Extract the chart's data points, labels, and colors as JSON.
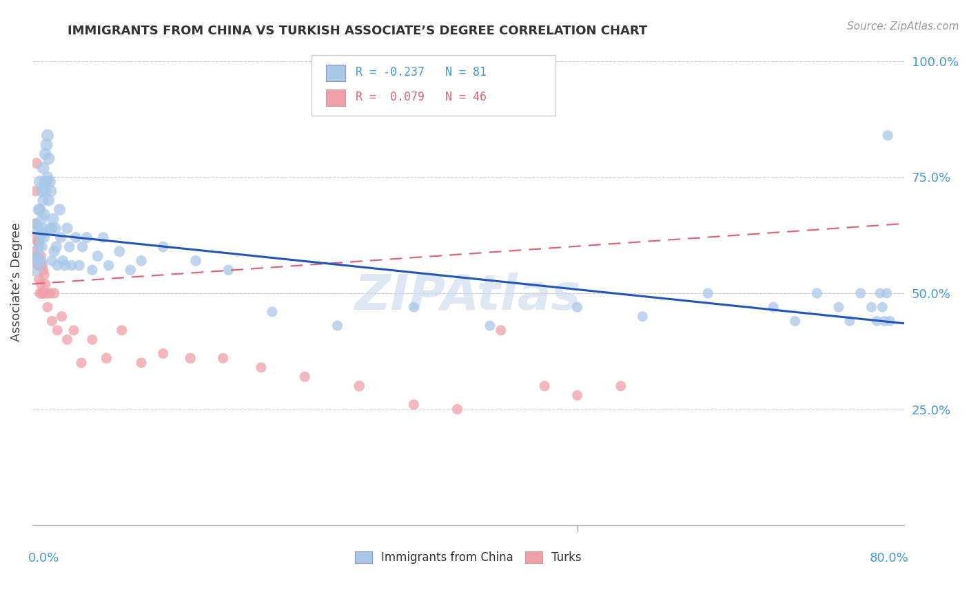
{
  "title": "IMMIGRANTS FROM CHINA VS TURKISH ASSOCIATE’S DEGREE CORRELATION CHART",
  "source": "Source: ZipAtlas.com",
  "ylabel": "Associate’s Degree",
  "right_yticks": [
    "100.0%",
    "75.0%",
    "50.0%",
    "25.0%"
  ],
  "right_ytick_vals": [
    1.0,
    0.75,
    0.5,
    0.25
  ],
  "legend_blue_r": "-0.237",
  "legend_blue_n": "81",
  "legend_pink_r": "0.079",
  "legend_pink_n": "46",
  "blue_color": "#A8C8E8",
  "pink_color": "#F0A0A8",
  "trend_blue_color": "#2255BB",
  "trend_pink_color": "#DD6677",
  "watermark_color": "#C8D8EE",
  "blue_trend_x": [
    0.0,
    0.8
  ],
  "blue_trend_y": [
    0.63,
    0.435
  ],
  "pink_trend_x": [
    0.0,
    0.8
  ],
  "pink_trend_y": [
    0.52,
    0.65
  ],
  "xlim": [
    0.0,
    0.8
  ],
  "ylim": [
    0.0,
    1.05
  ],
  "ygrid_vals": [
    0.25,
    0.5,
    0.75,
    1.0
  ],
  "china_x": [
    0.001,
    0.003,
    0.004,
    0.005,
    0.005,
    0.006,
    0.006,
    0.007,
    0.007,
    0.007,
    0.008,
    0.008,
    0.009,
    0.009,
    0.009,
    0.01,
    0.01,
    0.01,
    0.011,
    0.011,
    0.011,
    0.012,
    0.012,
    0.013,
    0.013,
    0.014,
    0.014,
    0.015,
    0.015,
    0.016,
    0.016,
    0.017,
    0.018,
    0.018,
    0.019,
    0.02,
    0.021,
    0.022,
    0.023,
    0.025,
    0.026,
    0.028,
    0.03,
    0.032,
    0.034,
    0.036,
    0.04,
    0.043,
    0.046,
    0.05,
    0.055,
    0.06,
    0.065,
    0.07,
    0.08,
    0.09,
    0.1,
    0.12,
    0.15,
    0.18,
    0.22,
    0.28,
    0.35,
    0.42,
    0.5,
    0.56,
    0.62,
    0.68,
    0.7,
    0.72,
    0.74,
    0.75,
    0.76,
    0.77,
    0.775,
    0.778,
    0.78,
    0.782,
    0.784,
    0.785,
    0.787
  ],
  "china_y": [
    0.56,
    0.65,
    0.57,
    0.64,
    0.58,
    0.68,
    0.6,
    0.74,
    0.68,
    0.62,
    0.64,
    0.57,
    0.72,
    0.66,
    0.6,
    0.77,
    0.7,
    0.63,
    0.74,
    0.67,
    0.62,
    0.8,
    0.72,
    0.82,
    0.74,
    0.84,
    0.75,
    0.79,
    0.7,
    0.74,
    0.64,
    0.72,
    0.64,
    0.57,
    0.66,
    0.59,
    0.64,
    0.6,
    0.56,
    0.68,
    0.62,
    0.57,
    0.56,
    0.64,
    0.6,
    0.56,
    0.62,
    0.56,
    0.6,
    0.62,
    0.55,
    0.58,
    0.62,
    0.56,
    0.59,
    0.55,
    0.57,
    0.6,
    0.57,
    0.55,
    0.46,
    0.43,
    0.47,
    0.43,
    0.47,
    0.45,
    0.5,
    0.47,
    0.44,
    0.5,
    0.47,
    0.44,
    0.5,
    0.47,
    0.44,
    0.5,
    0.47,
    0.44,
    0.5,
    0.84,
    0.44
  ],
  "china_sizes": [
    500,
    120,
    120,
    150,
    120,
    160,
    130,
    170,
    150,
    130,
    160,
    150,
    160,
    140,
    125,
    165,
    145,
    130,
    160,
    145,
    130,
    165,
    145,
    170,
    148,
    170,
    148,
    162,
    145,
    158,
    138,
    155,
    142,
    130,
    148,
    138,
    148,
    138,
    125,
    148,
    135,
    128,
    135,
    140,
    130,
    125,
    135,
    128,
    128,
    138,
    125,
    130,
    128,
    125,
    130,
    125,
    128,
    130,
    128,
    125,
    120,
    118,
    120,
    118,
    120,
    118,
    120,
    118,
    118,
    120,
    118,
    116,
    118,
    116,
    116,
    118,
    116,
    116,
    118,
    120,
    116
  ],
  "turk_x": [
    0.001,
    0.002,
    0.003,
    0.003,
    0.004,
    0.004,
    0.005,
    0.005,
    0.006,
    0.006,
    0.007,
    0.007,
    0.008,
    0.008,
    0.009,
    0.009,
    0.01,
    0.01,
    0.011,
    0.012,
    0.013,
    0.014,
    0.016,
    0.018,
    0.02,
    0.023,
    0.027,
    0.032,
    0.038,
    0.045,
    0.055,
    0.068,
    0.082,
    0.1,
    0.12,
    0.145,
    0.175,
    0.21,
    0.25,
    0.3,
    0.35,
    0.39,
    0.43,
    0.47,
    0.5,
    0.54
  ],
  "turk_y": [
    0.62,
    0.59,
    0.72,
    0.65,
    0.78,
    0.58,
    0.56,
    0.61,
    0.61,
    0.53,
    0.56,
    0.5,
    0.58,
    0.52,
    0.56,
    0.5,
    0.55,
    0.5,
    0.54,
    0.52,
    0.5,
    0.47,
    0.5,
    0.44,
    0.5,
    0.42,
    0.45,
    0.4,
    0.42,
    0.35,
    0.4,
    0.36,
    0.42,
    0.35,
    0.37,
    0.36,
    0.36,
    0.34,
    0.32,
    0.3,
    0.26,
    0.25,
    0.42,
    0.3,
    0.28,
    0.3
  ],
  "turk_sizes": [
    120,
    118,
    120,
    118,
    128,
    118,
    118,
    118,
    128,
    118,
    128,
    125,
    118,
    128,
    128,
    125,
    118,
    128,
    118,
    118,
    128,
    118,
    128,
    118,
    125,
    118,
    120,
    118,
    118,
    120,
    118,
    125,
    118,
    118,
    118,
    125,
    118,
    118,
    118,
    128,
    118,
    118,
    118,
    118,
    118,
    118
  ]
}
